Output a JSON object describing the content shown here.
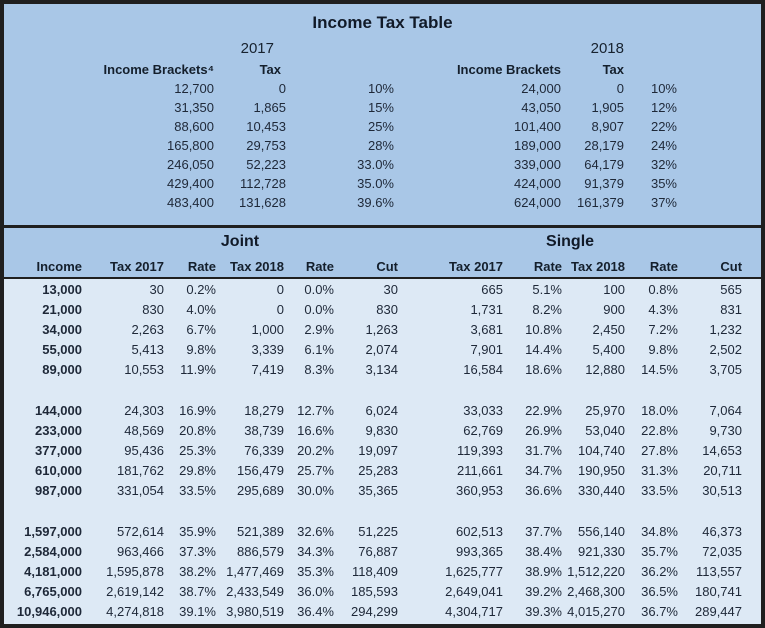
{
  "title": "Income Tax Table",
  "colors": {
    "top_background": "#a9c7e7",
    "data_background": "#dde9f5",
    "border": "#1f1f1f",
    "text": "#1e2838"
  },
  "brackets": {
    "y2017": {
      "year": "2017",
      "income_header": "Income Brackets⁴",
      "tax_header": "Tax",
      "rows": [
        [
          "12,700",
          "0",
          "10%"
        ],
        [
          "31,350",
          "1,865",
          "15%"
        ],
        [
          "88,600",
          "10,453",
          "25%"
        ],
        [
          "165,800",
          "29,753",
          "28%"
        ],
        [
          "246,050",
          "52,223",
          "33.0%"
        ],
        [
          "429,400",
          "112,728",
          "35.0%"
        ],
        [
          "483,400",
          "131,628",
          "39.6%"
        ]
      ]
    },
    "y2018": {
      "year": "2018",
      "income_header": "Income Brackets",
      "tax_header": "Tax",
      "rows": [
        [
          "24,000",
          "0",
          "10%"
        ],
        [
          "43,050",
          "1,905",
          "12%"
        ],
        [
          "101,400",
          "8,907",
          "22%"
        ],
        [
          "189,000",
          "28,179",
          "24%"
        ],
        [
          "339,000",
          "64,179",
          "32%"
        ],
        [
          "424,000",
          "91,379",
          "35%"
        ],
        [
          "624,000",
          "161,379",
          "37%"
        ]
      ]
    }
  },
  "detail": {
    "joint_label": "Joint",
    "single_label": "Single",
    "headers": [
      "Income",
      "Tax 2017",
      "Rate",
      "Tax 2018",
      "Rate",
      "Cut",
      "Tax 2017",
      "Rate",
      "Tax 2018",
      "Rate",
      "Cut"
    ],
    "groups": [
      {
        "rows": [
          {
            "income": "13,000",
            "joint": [
              "30",
              "0.2%",
              "0",
              "0.0%",
              "30"
            ],
            "single": [
              "665",
              "5.1%",
              "100",
              "0.8%",
              "565"
            ]
          },
          {
            "income": "21,000",
            "joint": [
              "830",
              "4.0%",
              "0",
              "0.0%",
              "830"
            ],
            "single": [
              "1,731",
              "8.2%",
              "900",
              "4.3%",
              "831"
            ]
          },
          {
            "income": "34,000",
            "joint": [
              "2,263",
              "6.7%",
              "1,000",
              "2.9%",
              "1,263"
            ],
            "single": [
              "3,681",
              "10.8%",
              "2,450",
              "7.2%",
              "1,232"
            ]
          },
          {
            "income": "55,000",
            "joint": [
              "5,413",
              "9.8%",
              "3,339",
              "6.1%",
              "2,074"
            ],
            "single": [
              "7,901",
              "14.4%",
              "5,400",
              "9.8%",
              "2,502"
            ]
          },
          {
            "income": "89,000",
            "joint": [
              "10,553",
              "11.9%",
              "7,419",
              "8.3%",
              "3,134"
            ],
            "single": [
              "16,584",
              "18.6%",
              "12,880",
              "14.5%",
              "3,705"
            ]
          }
        ]
      },
      {
        "rows": [
          {
            "income": "144,000",
            "joint": [
              "24,303",
              "16.9%",
              "18,279",
              "12.7%",
              "6,024"
            ],
            "single": [
              "33,033",
              "22.9%",
              "25,970",
              "18.0%",
              "7,064"
            ]
          },
          {
            "income": "233,000",
            "joint": [
              "48,569",
              "20.8%",
              "38,739",
              "16.6%",
              "9,830"
            ],
            "single": [
              "62,769",
              "26.9%",
              "53,040",
              "22.8%",
              "9,730"
            ]
          },
          {
            "income": "377,000",
            "joint": [
              "95,436",
              "25.3%",
              "76,339",
              "20.2%",
              "19,097"
            ],
            "single": [
              "119,393",
              "31.7%",
              "104,740",
              "27.8%",
              "14,653"
            ]
          },
          {
            "income": "610,000",
            "joint": [
              "181,762",
              "29.8%",
              "156,479",
              "25.7%",
              "25,283"
            ],
            "single": [
              "211,661",
              "34.7%",
              "190,950",
              "31.3%",
              "20,711"
            ]
          },
          {
            "income": "987,000",
            "joint": [
              "331,054",
              "33.5%",
              "295,689",
              "30.0%",
              "35,365"
            ],
            "single": [
              "360,953",
              "36.6%",
              "330,440",
              "33.5%",
              "30,513"
            ]
          }
        ]
      },
      {
        "rows": [
          {
            "income": "1,597,000",
            "joint": [
              "572,614",
              "35.9%",
              "521,389",
              "32.6%",
              "51,225"
            ],
            "single": [
              "602,513",
              "37.7%",
              "556,140",
              "34.8%",
              "46,373"
            ]
          },
          {
            "income": "2,584,000",
            "joint": [
              "963,466",
              "37.3%",
              "886,579",
              "34.3%",
              "76,887"
            ],
            "single": [
              "993,365",
              "38.4%",
              "921,330",
              "35.7%",
              "72,035"
            ]
          },
          {
            "income": "4,181,000",
            "joint": [
              "1,595,878",
              "38.2%",
              "1,477,469",
              "35.3%",
              "118,409"
            ],
            "single": [
              "1,625,777",
              "38.9%",
              "1,512,220",
              "36.2%",
              "113,557"
            ]
          },
          {
            "income": "6,765,000",
            "joint": [
              "2,619,142",
              "38.7%",
              "2,433,549",
              "36.0%",
              "185,593"
            ],
            "single": [
              "2,649,041",
              "39.2%",
              "2,468,300",
              "36.5%",
              "180,741"
            ]
          },
          {
            "income": "10,946,000",
            "joint": [
              "4,274,818",
              "39.1%",
              "3,980,519",
              "36.4%",
              "294,299"
            ],
            "single": [
              "4,304,717",
              "39.3%",
              "4,015,270",
              "36.7%",
              "289,447"
            ]
          }
        ]
      }
    ]
  }
}
